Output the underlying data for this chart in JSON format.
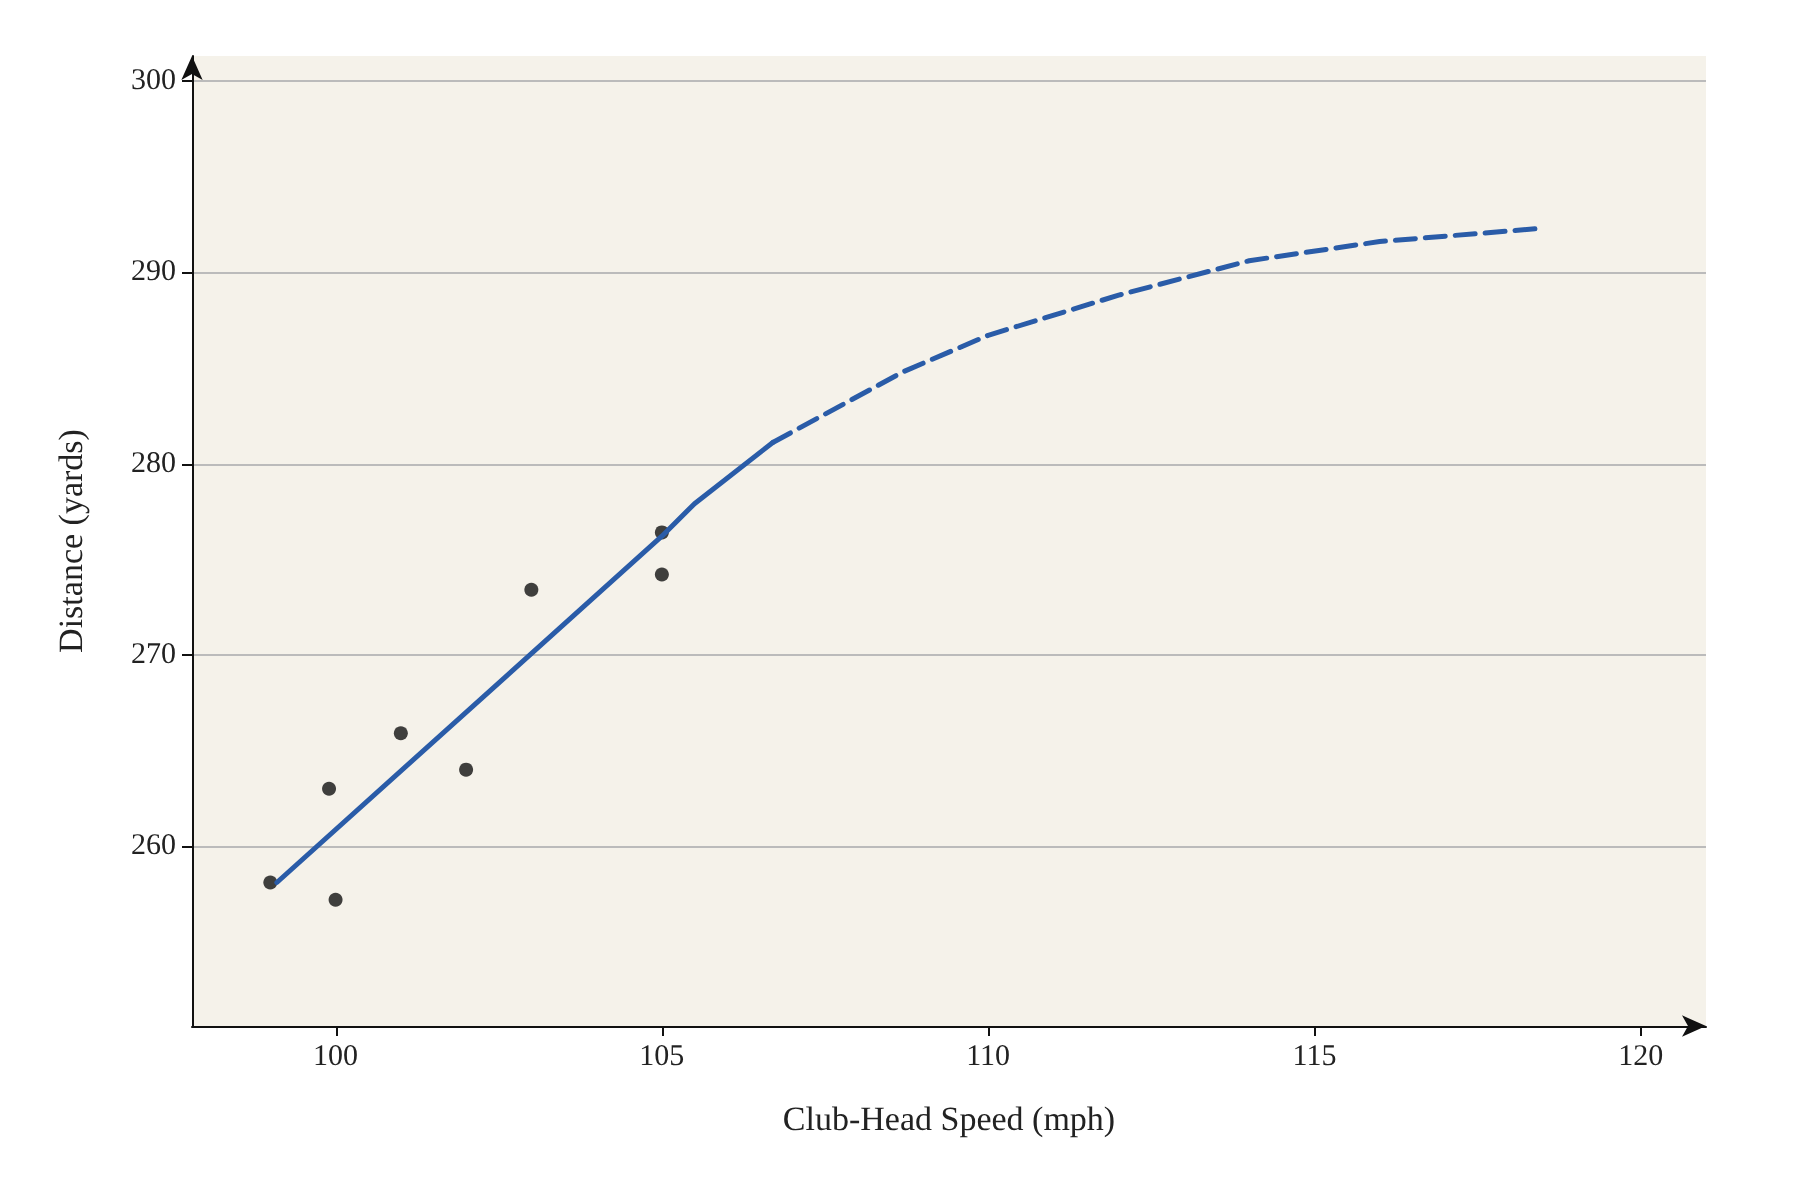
{
  "chart_data": {
    "type": "scatter",
    "xlabel": "Club-Head Speed (mph)",
    "ylabel": "Distance (yards)",
    "xlim": [
      97.8,
      121
    ],
    "ylim": [
      250.6,
      301.3
    ],
    "xticks": [
      100,
      105,
      110,
      115,
      120
    ],
    "yticks": [
      260,
      270,
      280,
      290,
      300
    ],
    "grid": "y",
    "series": [
      {
        "color": "#111111",
        "marker": "circle",
        "x": [
          99.0,
          99.9,
          100.0,
          101.0,
          102.0,
          103.0,
          105.0,
          105.0
        ],
        "values": [
          258.1,
          263.0,
          257.2,
          265.9,
          264.0,
          273.4,
          274.2,
          276.4
        ]
      },
      {
        "type": "line",
        "color": "#2a5ca8",
        "marker": "none",
        "line_style": "solid",
        "x": [
          99.1,
          105.0,
          105.5,
          106.7
        ],
        "values": [
          258.1,
          276.2,
          277.9,
          281.1
        ]
      },
      {
        "type": "line",
        "color": "#2a5ca8",
        "marker": "none",
        "line_style": "dashed",
        "x": [
          106.7,
          108.7,
          110,
          112,
          114,
          116,
          118.5
        ],
        "values": [
          281.1,
          284.8,
          286.7,
          288.8,
          290.6,
          291.6,
          292.3
        ]
      }
    ]
  }
}
